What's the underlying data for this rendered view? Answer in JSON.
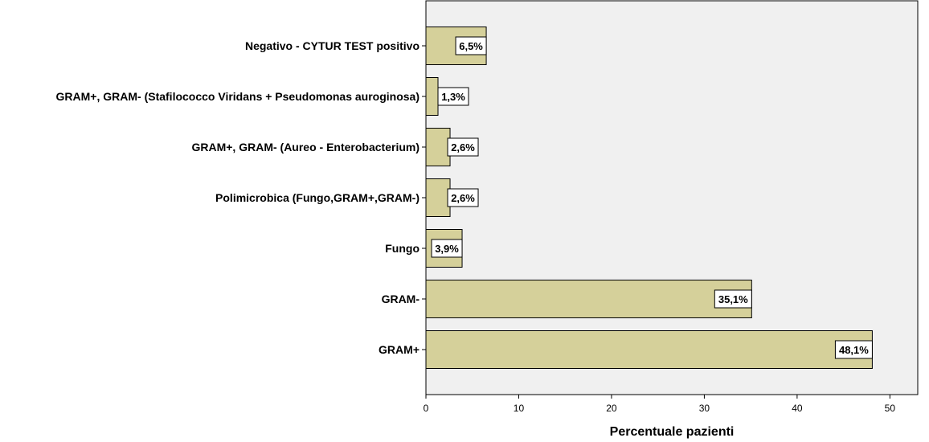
{
  "chart_data": {
    "type": "bar",
    "orientation": "horizontal",
    "categories": [
      "Negativo - CYTUR TEST positivo",
      "GRAM+, GRAM- (Stafilococco Viridans + Pseudomonas auroginosa)",
      "GRAM+, GRAM- (Aureo - Enterobacterium)",
      "Polimicrobica (Fungo,GRAM+,GRAM-)",
      "Fungo",
      "GRAM-",
      "GRAM+"
    ],
    "values": [
      6.5,
      1.3,
      2.6,
      2.6,
      3.9,
      35.1,
      48.1
    ],
    "data_labels": [
      "6,5%",
      "1,3%",
      "2,6%",
      "2,6%",
      "3,9%",
      "35,1%",
      "48,1%"
    ],
    "xlabel": "Percentuale pazienti",
    "ylabel": "",
    "xlim": [
      0,
      53
    ],
    "xticks": [
      0,
      10,
      20,
      30,
      40,
      50
    ],
    "xtick_labels": [
      "0",
      "10",
      "20",
      "30",
      "40",
      "50"
    ],
    "grid": false,
    "colors": {
      "bar_fill": "#d5d09a",
      "bar_stroke": "#000000",
      "plot_background": "#f0f0f0",
      "label_box_fill": "#ffffff"
    }
  }
}
